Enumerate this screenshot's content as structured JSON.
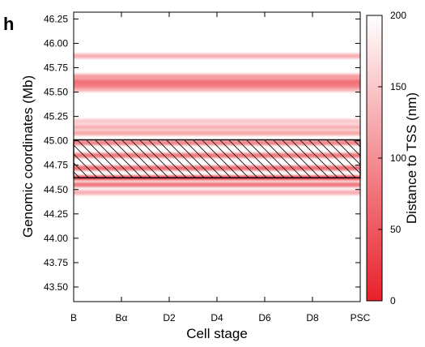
{
  "panel_label": "h",
  "chart_data": {
    "type": "heatmap",
    "xlabel": "Cell stage",
    "ylabel": "Genomic coordinates (Mb)",
    "categories": [
      "B",
      "Bα",
      "D2",
      "D4",
      "D6",
      "D8",
      "PSC"
    ],
    "y_ticks": [
      "43.50",
      "43.75",
      "44.00",
      "44.25",
      "44.50",
      "44.75",
      "45.00",
      "45.25",
      "45.50",
      "45.75",
      "46.00",
      "46.25"
    ],
    "ylim": [
      43.35,
      46.32
    ],
    "colorbar": {
      "label": "Distance to TSS (nm)",
      "range": [
        0,
        200
      ],
      "ticks": [
        "0",
        "50",
        "100",
        "150",
        "200"
      ],
      "low_color": "#e8202a",
      "high_color": "#ffffff"
    },
    "bands": [
      {
        "y": 45.87,
        "weight": 0.35
      },
      {
        "y": 45.66,
        "weight": 0.45
      },
      {
        "y": 45.61,
        "weight": 0.6
      },
      {
        "y": 45.57,
        "weight": 0.55
      },
      {
        "y": 45.53,
        "weight": 0.35
      },
      {
        "y": 45.2,
        "weight": 0.25
      },
      {
        "y": 45.14,
        "weight": 0.35
      },
      {
        "y": 45.08,
        "weight": 0.4
      },
      {
        "y": 44.98,
        "weight": 0.55
      },
      {
        "y": 44.85,
        "weight": 0.6
      },
      {
        "y": 44.72,
        "weight": 0.65
      },
      {
        "y": 44.62,
        "weight": 0.8
      },
      {
        "y": 44.55,
        "weight": 0.6
      },
      {
        "y": 44.47,
        "weight": 0.35
      }
    ],
    "highlight_region": {
      "y_min": 44.62,
      "y_max": 45.01,
      "pattern": "diagonal-hatch"
    }
  }
}
